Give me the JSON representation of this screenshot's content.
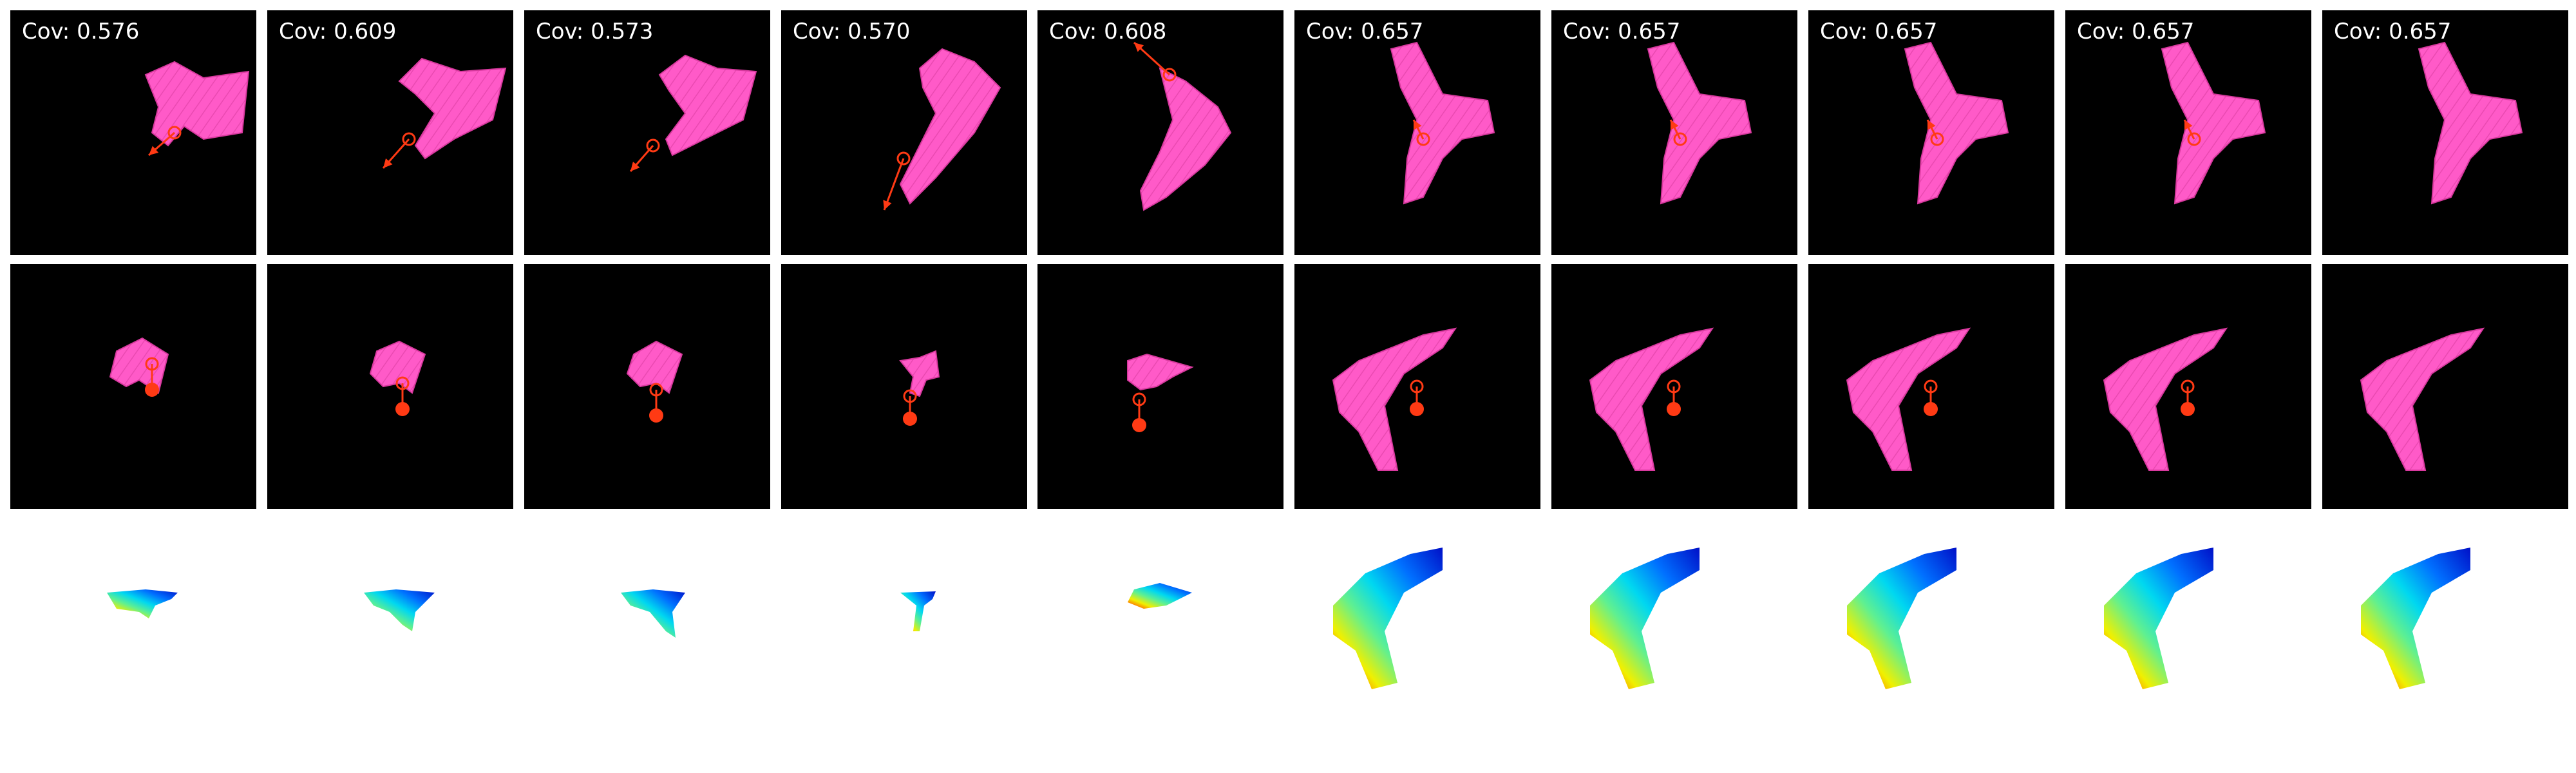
{
  "colors": {
    "cloth": "#ff5ac8",
    "cloth_shade": "#d8399e",
    "action": "#ff3a14",
    "panel_bg": "#000000",
    "page_bg": "#ffffff"
  },
  "columns": [
    {
      "coverage": "Cov: 0.576"
    },
    {
      "coverage": "Cov: 0.609"
    },
    {
      "coverage": "Cov: 0.573"
    },
    {
      "coverage": "Cov: 0.570"
    },
    {
      "coverage": "Cov: 0.608"
    },
    {
      "coverage": "Cov: 0.657"
    },
    {
      "coverage": "Cov: 0.657"
    },
    {
      "coverage": "Cov: 0.657"
    },
    {
      "coverage": "Cov: 0.657"
    },
    {
      "coverage": "Cov: 0.657"
    }
  ]
}
